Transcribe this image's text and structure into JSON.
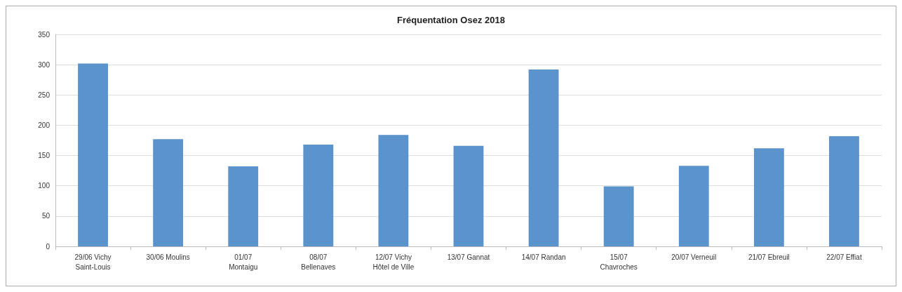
{
  "chart_data": {
    "type": "bar",
    "title": "Fréquentation Osez 2018",
    "categories": [
      "29/06 Vichy\nSaint-Louis",
      "30/06 Moulins",
      "01/07\nMontaigu",
      "08/07\nBellenaves",
      "12/07 Vichy\nHôtel de Ville",
      "13/07 Gannat",
      "14/07 Randan",
      "15/07\nChavroches",
      "20/07 Verneuil",
      "21/07 Ebreuil",
      "22/07 Effiat"
    ],
    "values": [
      302,
      177,
      132,
      168,
      184,
      166,
      292,
      99,
      133,
      162,
      182
    ],
    "color": "#5b93cc",
    "ylim": [
      0,
      350
    ],
    "yticks": [
      0,
      50,
      100,
      150,
      200,
      250,
      300,
      350
    ],
    "grid": "y"
  }
}
